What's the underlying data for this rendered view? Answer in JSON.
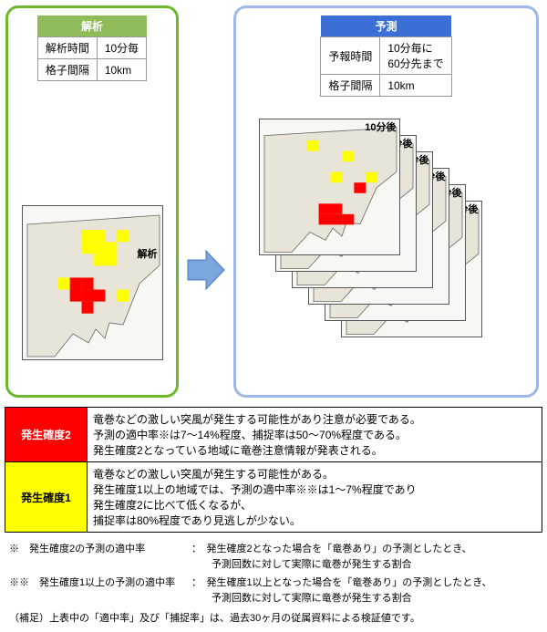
{
  "panels": {
    "analysis": {
      "title": "解析",
      "border_color": "#6fb82e",
      "header_bg": "#8fbb5a",
      "header_fg": "#ffffff",
      "rows": [
        {
          "k": "解析時間",
          "v": "10分毎"
        },
        {
          "k": "格子間隔",
          "v": "10km"
        }
      ],
      "map_label": "解析"
    },
    "forecast": {
      "title": "予測",
      "border_color": "#9db8e8",
      "header_bg": "#3b6fd6",
      "header_fg": "#ffffff",
      "rows": [
        {
          "k": "予報時間",
          "v": "10分毎に\n60分先まで"
        },
        {
          "k": "格子間隔",
          "v": "10km"
        }
      ],
      "stack_labels": [
        "10分後",
        "20分後",
        "30分後",
        "40分後",
        "50分後",
        "60分後"
      ]
    }
  },
  "map": {
    "bg": "#f7f7f4",
    "land": "#e8e4d8",
    "coast": "#666",
    "cells_analysis": {
      "yellow": [
        [
          5,
          2
        ],
        [
          6,
          2
        ],
        [
          8,
          2
        ],
        [
          5,
          3
        ],
        [
          6,
          3
        ],
        [
          7,
          3
        ],
        [
          6,
          4
        ],
        [
          7,
          4
        ],
        [
          3,
          6
        ],
        [
          8,
          7
        ]
      ],
      "red": [
        [
          4,
          6
        ],
        [
          5,
          6
        ],
        [
          4,
          7
        ],
        [
          5,
          7
        ],
        [
          6,
          7
        ],
        [
          5,
          8
        ]
      ]
    },
    "cells_forecast": {
      "yellow": [
        [
          4,
          2
        ],
        [
          7,
          3
        ],
        [
          6,
          5
        ],
        [
          9,
          5
        ]
      ],
      "red": [
        [
          8,
          6
        ],
        [
          5,
          8
        ],
        [
          6,
          8
        ],
        [
          5,
          9
        ],
        [
          6,
          9
        ],
        [
          7,
          9
        ]
      ]
    },
    "colors": {
      "yellow": "#ffff00",
      "red": "#ff0000"
    }
  },
  "arrow_color": "#7aa6de",
  "levels": [
    {
      "name": "発生確度2",
      "bg": "#ff0000",
      "fg": "#ffffff",
      "text": "竜巻などの激しい突風が発生する可能性があり注意が必要である。\n予測の適中率※は7〜14%程度、捕捉率は50〜70%程度である。\n発生確度2となっている地域に竜巻注意情報が発表される。"
    },
    {
      "name": "発生確度1",
      "bg": "#ffff00",
      "fg": "#000000",
      "text": "竜巻などの激しい突風が発生する可能性がある。\n発生確度1以上の地域では、予測の適中率※※は1〜7%程度であり\n発生確度2に比べて低くなるが、\n捕捉率は80%程度であり見逃しが少ない。"
    }
  ],
  "footnotes": [
    {
      "k": "※　発生確度2の予測の適中率",
      "v": "：　発生確度2となった場合を「竜巻あり」の予測としたとき、\n　　予測回数に対して実際に竜巻が発生する割合"
    },
    {
      "k": "※※　発生確度1以上の予測の適中率",
      "v": "：　発生確度1以上となった場合を「竜巻あり」の予測としたとき、\n　　予測回数に対して実際に竜巻が発生する割合"
    }
  ],
  "supplement": "（補足）上表中の「適中率」及び「捕捉率」は、過去30ヶ月の従属資料による検証値です。"
}
